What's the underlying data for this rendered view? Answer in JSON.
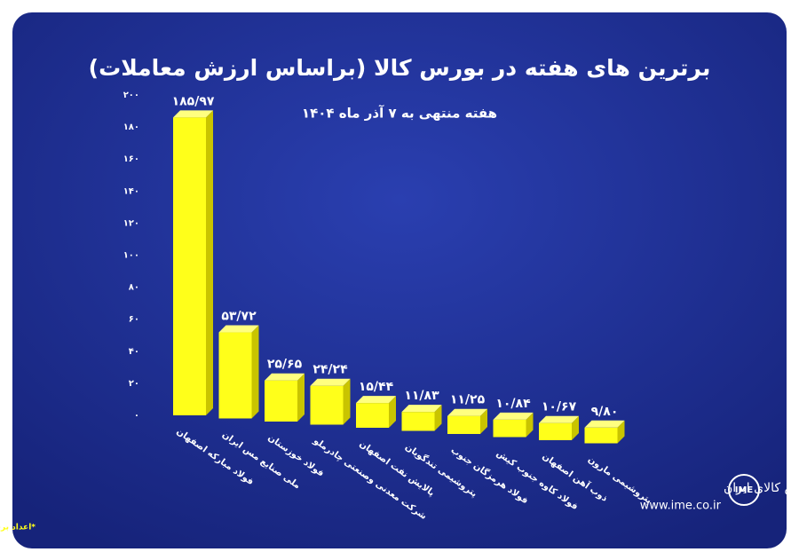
{
  "chart_data": {
    "type": "bar",
    "title": "برترین های هفته در بورس کالا (براساس ارزش معاملات)",
    "subtitle": "هفته منتهی به ۷ آذر ماه ۱۴۰۴",
    "categories": [
      "فولاد مبارکه اصفهان",
      "ملی صنایع مس ایران",
      "فولاد خوزستان",
      "شرکت معدنی وصنعتی چادرملو",
      "پالایش نفت اصفهان",
      "پتروشیمی تندگویان",
      "فولاد هرمزگان جنوب",
      "فولاد کاوه جنوب کیش",
      "ذوب آهن اصفهان",
      "پتروشیمی مارون"
    ],
    "values": [
      185.97,
      53.72,
      25.65,
      24.24,
      15.44,
      11.83,
      11.25,
      10.84,
      10.67,
      9.8
    ],
    "value_labels": [
      "۱۸۵/۹۷",
      "۵۳/۷۲",
      "۲۵/۶۵",
      "۲۴/۲۴",
      "۱۵/۴۴",
      "۱۱/۸۳",
      "۱۱/۲۵",
      "۱۰/۸۴",
      "۱۰/۶۷",
      "۹/۸۰"
    ],
    "color": "#ffff1a",
    "ylim": [
      0,
      200
    ],
    "yticks": [
      {
        "value": 0,
        "label": "۰"
      },
      {
        "value": 20,
        "label": "۲۰"
      },
      {
        "value": 40,
        "label": "۴۰"
      },
      {
        "value": 60,
        "label": "۶۰"
      },
      {
        "value": 80,
        "label": "۸۰"
      },
      {
        "value": 100,
        "label": "۱۰۰"
      },
      {
        "value": 120,
        "label": "۱۲۰"
      },
      {
        "value": 140,
        "label": "۱۴۰"
      },
      {
        "value": 160,
        "label": "۱۶۰"
      },
      {
        "value": 180,
        "label": "۱۸۰"
      },
      {
        "value": 200,
        "label": "۲۰۰"
      }
    ],
    "grid": false,
    "footnote": "*اعداد برحسب هزار میلیارد ریال است",
    "brand": "بورس کالای ایران",
    "website": "www.ime.co.ir"
  }
}
